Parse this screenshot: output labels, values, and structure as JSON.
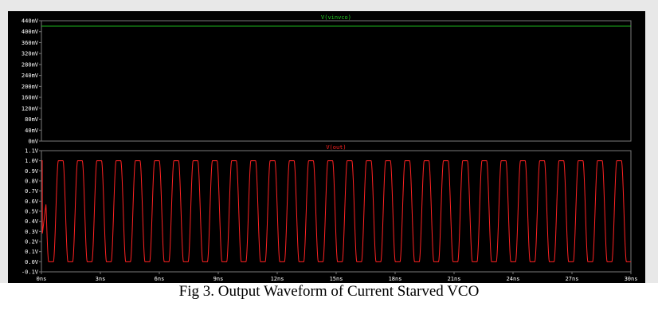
{
  "chart_data": [
    {
      "type": "line",
      "title": "V(vinvco)",
      "series": [
        {
          "name": "V(vinvco)",
          "color": "#22cc22",
          "x": [
            0,
            30
          ],
          "y": [
            0.42,
            0.42
          ]
        }
      ],
      "x_unit": "ns",
      "ylim": [
        0,
        0.44
      ],
      "y_ticks": [
        "440mV",
        "400mV",
        "360mV",
        "320mV",
        "280mV",
        "240mV",
        "200mV",
        "160mV",
        "120mV",
        "80mV",
        "40mV",
        "0mV"
      ],
      "y_tick_values": [
        0.44,
        0.4,
        0.36,
        0.32,
        0.28,
        0.24,
        0.2,
        0.16,
        0.12,
        0.08,
        0.04,
        0.0
      ],
      "xlim": [
        0,
        30
      ],
      "grid": false
    },
    {
      "type": "line",
      "title": "V(out)",
      "series": [
        {
          "name": "V(out)",
          "color": "#ff2222",
          "waveform": "square-like oscillation",
          "low": 0.0,
          "high": 1.0,
          "period_ns": 0.98,
          "x_start_ns": 0.0,
          "x_end_ns": 30.0,
          "initial_dip": 0.2
        }
      ],
      "x_unit": "ns",
      "ylim": [
        -0.1,
        1.1
      ],
      "y_ticks": [
        "1.1V",
        "1.0V",
        "0.9V",
        "0.8V",
        "0.7V",
        "0.6V",
        "0.5V",
        "0.4V",
        "0.3V",
        "0.2V",
        "0.1V",
        "0.0V",
        "-0.1V"
      ],
      "y_tick_values": [
        1.1,
        1.0,
        0.9,
        0.8,
        0.7,
        0.6,
        0.5,
        0.4,
        0.3,
        0.2,
        0.1,
        0.0,
        -0.1
      ],
      "xlim": [
        0,
        30
      ],
      "x_ticks": [
        "0ns",
        "3ns",
        "6ns",
        "9ns",
        "12ns",
        "15ns",
        "18ns",
        "21ns",
        "24ns",
        "27ns",
        "30ns"
      ],
      "x_tick_values": [
        0,
        3,
        6,
        9,
        12,
        15,
        18,
        21,
        24,
        27,
        30
      ],
      "grid": false
    }
  ],
  "caption": "Fig 3. Output Waveform of Current Starved VCO",
  "colors": {
    "background": "#000000",
    "axis": "#7a7a7a",
    "tick_text": "#ffffff"
  }
}
